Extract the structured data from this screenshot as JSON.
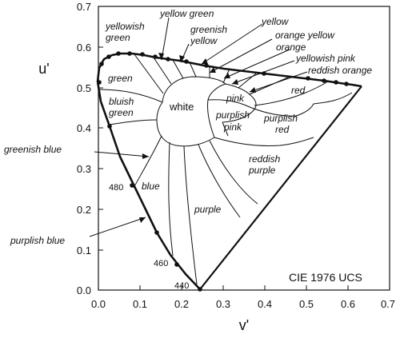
{
  "title": "CIE 1976 UCS",
  "x_axis": {
    "label": "v'",
    "ticks": [
      "0.0",
      "0.1",
      "0.2",
      "0.3",
      "0.4",
      "0.5",
      "0.6",
      "0.7"
    ]
  },
  "y_axis": {
    "label": "u'",
    "ticks": [
      "0.0",
      "0.1",
      "0.2",
      "0.3",
      "0.4",
      "0.5",
      "0.6",
      "0.7"
    ]
  },
  "regions": [
    {
      "id": "yellow-green",
      "text": "yellow green"
    },
    {
      "id": "yellowish-green-1",
      "text": "yellowish"
    },
    {
      "id": "yellowish-green-2",
      "text": "green"
    },
    {
      "id": "greenish-yellow-1",
      "text": "greenish"
    },
    {
      "id": "greenish-yellow-2",
      "text": "yellow"
    },
    {
      "id": "yellow",
      "text": "yellow"
    },
    {
      "id": "orange-yellow",
      "text": "orange yellow"
    },
    {
      "id": "orange",
      "text": "orange"
    },
    {
      "id": "yellowish-pink",
      "text": "yellowish pink"
    },
    {
      "id": "reddish-orange",
      "text": "reddish orange"
    },
    {
      "id": "green",
      "text": "green"
    },
    {
      "id": "bluish-green-1",
      "text": "bluish"
    },
    {
      "id": "bluish-green-2",
      "text": "green"
    },
    {
      "id": "white",
      "text": "white"
    },
    {
      "id": "pink",
      "text": "pink"
    },
    {
      "id": "red",
      "text": "red"
    },
    {
      "id": "purplish-pink-1",
      "text": "purplish"
    },
    {
      "id": "purplish-pink-2",
      "text": "pink"
    },
    {
      "id": "purplish-red-1",
      "text": "purplish"
    },
    {
      "id": "purplish-red-2",
      "text": "red"
    },
    {
      "id": "greenish-blue",
      "text": "greenish blue"
    },
    {
      "id": "reddish-purple-1",
      "text": "reddish"
    },
    {
      "id": "reddish-purple-2",
      "text": "purple"
    },
    {
      "id": "blue",
      "text": "blue"
    },
    {
      "id": "purple",
      "text": "purple"
    },
    {
      "id": "purplish-blue",
      "text": "purplish blue"
    }
  ],
  "wavelengths": [
    "480",
    "460",
    "440"
  ]
}
